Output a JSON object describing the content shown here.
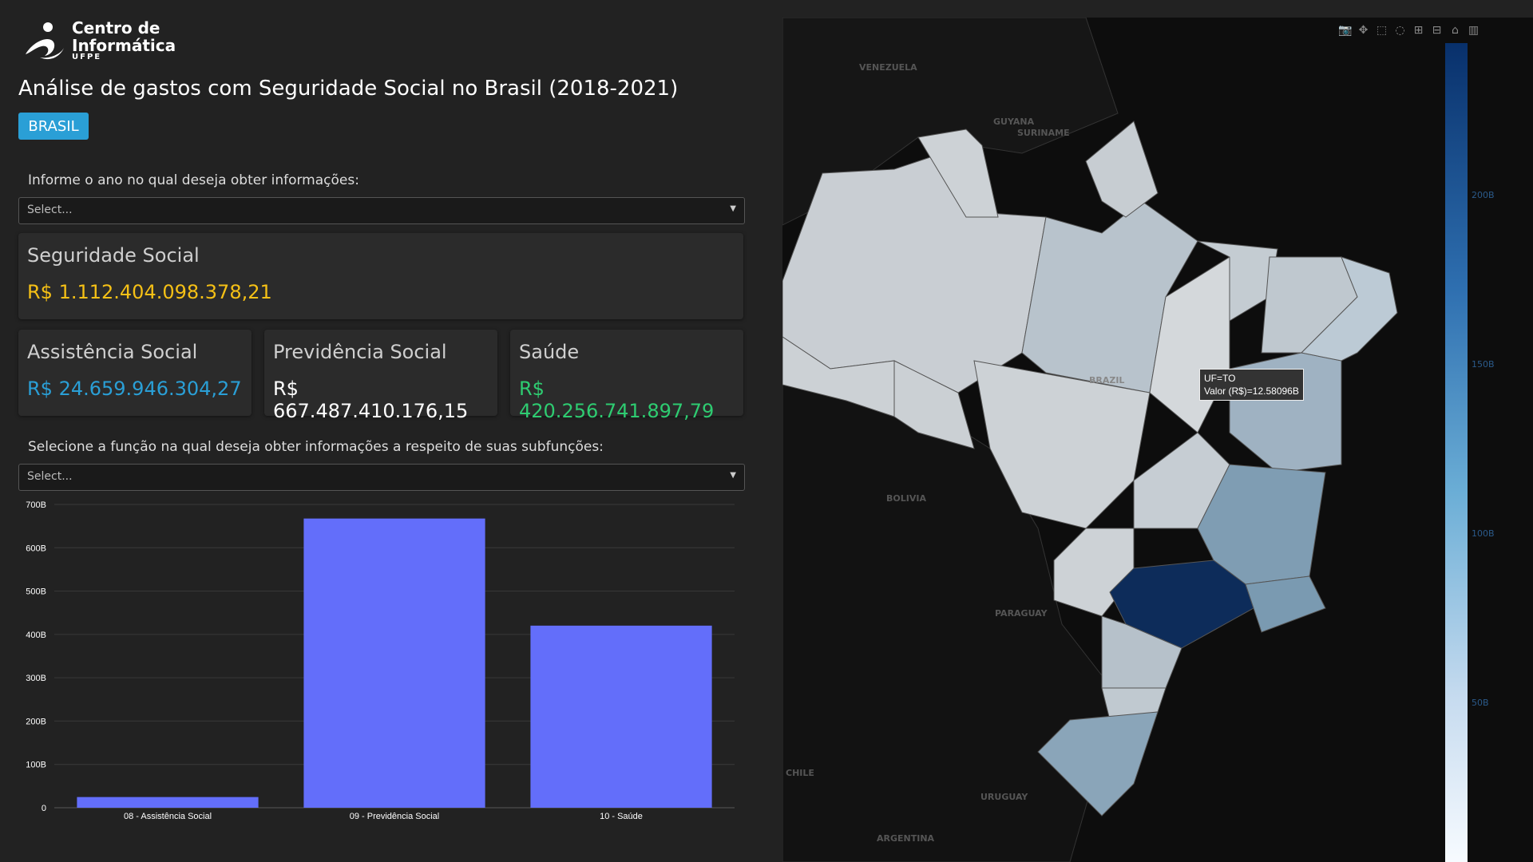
{
  "logo": {
    "line1": "Centro de",
    "line2": "Informática",
    "line3": "UFPE"
  },
  "title": "Análise de gastos com Seguridade Social no Brasil (2018-2021)",
  "badge": "BRASIL",
  "year_label": "Informe o ano no qual deseja obter informações:",
  "year_select": {
    "placeholder": "Select..."
  },
  "cards": {
    "total": {
      "title": "Seguridade Social",
      "value": "R$ 1.112.404.098.378,21",
      "color": "#f5c016"
    },
    "assistencia": {
      "title": "Assistência Social",
      "value": "R$ 24.659.946.304,27",
      "color": "#2a9fd6"
    },
    "previdencia": {
      "title": "Previdência Social",
      "value": "R$ 667.487.410.176,15",
      "color": "#ffffff"
    },
    "saude": {
      "title": "Saúde",
      "value": "R$ 420.256.741.897,79",
      "color": "#2ecc71"
    }
  },
  "function_label": "Selecione a função na qual deseja obter informações a respeito de suas subfunções:",
  "function_select": {
    "placeholder": "Select..."
  },
  "chart_data": {
    "type": "bar",
    "categories": [
      "08 - Assistência Social",
      "09 - Previdência Social",
      "10 - Saúde"
    ],
    "values": [
      24.66,
      667.49,
      420.26
    ],
    "ylim": [
      0,
      700
    ],
    "yticks": [
      "0",
      "100B",
      "200B",
      "300B",
      "400B",
      "500B",
      "600B",
      "700B"
    ],
    "bar_color": "#636efa",
    "grid": true,
    "title": "",
    "xlabel": "",
    "ylabel": ""
  },
  "map": {
    "country_labels": [
      "VENEZUELA",
      "GUYANA",
      "SURINAME",
      "BOLIVIA",
      "PARAGUAY",
      "ARGENTINA",
      "URUGUAY",
      "CHILE",
      "BRAZIL"
    ],
    "colorscale": [
      "#08306b",
      "#2e6fb0",
      "#6baed6",
      "#c6dbef",
      "#f7fbff"
    ],
    "colorbar_ticks": [
      "200B",
      "150B",
      "100B",
      "50B"
    ],
    "tooltip": {
      "line1": "UF=TO",
      "line2": "Valor (R$)=12.58096B"
    },
    "toolbar_icons": [
      "camera-icon",
      "pan-icon",
      "box-select-icon",
      "lasso-icon",
      "zoom-in-icon",
      "zoom-out-icon",
      "home-icon",
      "plotly-logo-icon"
    ]
  }
}
